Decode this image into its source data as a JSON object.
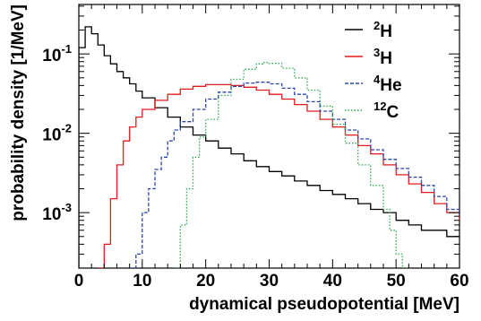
{
  "chart_data": {
    "type": "line",
    "title": "",
    "xlabel": "dynamical pseudopotential [MeV]",
    "ylabel": "probability density [1/MeV]",
    "xlim": [
      0,
      60
    ],
    "ylim": [
      0.0002,
      0.42
    ],
    "y_scale": "log",
    "grid": false,
    "legend_position": "top-right",
    "x_ticks": [
      "0",
      "10",
      "20",
      "30",
      "40",
      "50",
      "60"
    ],
    "y_ticks": [
      {
        "base": "10",
        "exp": "-1"
      },
      {
        "base": "10",
        "exp": "-2"
      },
      {
        "base": "10",
        "exp": "-3"
      }
    ],
    "series": [
      {
        "name_mass": "2",
        "name_elem": "H",
        "color": "#000000",
        "dash": "solid",
        "points": [
          [
            0,
            0.12
          ],
          [
            1,
            0.22
          ],
          [
            2,
            0.18
          ],
          [
            3,
            0.13
          ],
          [
            4,
            0.095
          ],
          [
            5,
            0.075
          ],
          [
            6,
            0.06
          ],
          [
            7,
            0.05
          ],
          [
            8,
            0.042
          ],
          [
            9,
            0.034
          ],
          [
            10,
            0.028
          ],
          [
            12,
            0.021
          ],
          [
            14,
            0.016
          ],
          [
            16,
            0.012
          ],
          [
            18,
            0.0095
          ],
          [
            20,
            0.008
          ],
          [
            22,
            0.0065
          ],
          [
            24,
            0.0055
          ],
          [
            26,
            0.0045
          ],
          [
            28,
            0.0038
          ],
          [
            30,
            0.0033
          ],
          [
            32,
            0.0029
          ],
          [
            34,
            0.0025
          ],
          [
            36,
            0.0022
          ],
          [
            38,
            0.0019
          ],
          [
            40,
            0.0017
          ],
          [
            42,
            0.0015
          ],
          [
            44,
            0.0013
          ],
          [
            46,
            0.0011
          ],
          [
            48,
            0.001
          ],
          [
            50,
            0.0008
          ],
          [
            52,
            0.0007
          ],
          [
            54,
            0.0006
          ],
          [
            56,
            0.0006
          ],
          [
            58,
            0.0005
          ],
          [
            60,
            0.0005
          ]
        ]
      },
      {
        "name_mass": "3",
        "name_elem": "H",
        "color": "#e31b1b",
        "dash": "solid",
        "points": [
          [
            3,
            0.0002
          ],
          [
            4,
            0.0004
          ],
          [
            5,
            0.0015
          ],
          [
            6,
            0.004
          ],
          [
            7,
            0.008
          ],
          [
            8,
            0.012
          ],
          [
            9,
            0.016
          ],
          [
            10,
            0.02
          ],
          [
            12,
            0.026
          ],
          [
            14,
            0.031
          ],
          [
            16,
            0.036
          ],
          [
            18,
            0.039
          ],
          [
            20,
            0.041
          ],
          [
            22,
            0.041
          ],
          [
            24,
            0.04
          ],
          [
            26,
            0.038
          ],
          [
            28,
            0.035
          ],
          [
            30,
            0.031
          ],
          [
            32,
            0.027
          ],
          [
            34,
            0.023
          ],
          [
            36,
            0.019
          ],
          [
            38,
            0.015
          ],
          [
            40,
            0.012
          ],
          [
            42,
            0.0095
          ],
          [
            44,
            0.007
          ],
          [
            46,
            0.0055
          ],
          [
            48,
            0.004
          ],
          [
            50,
            0.003
          ],
          [
            52,
            0.0023
          ],
          [
            54,
            0.0018
          ],
          [
            56,
            0.0013
          ],
          [
            58,
            0.001
          ],
          [
            60,
            0.0008
          ]
        ]
      },
      {
        "name_mass": "4",
        "name_elem": "He",
        "color": "#2a46a8",
        "dash": "dashed",
        "points": [
          [
            8,
            0.0002
          ],
          [
            9,
            0.0003
          ],
          [
            10,
            0.001
          ],
          [
            11,
            0.002
          ],
          [
            12,
            0.0035
          ],
          [
            13,
            0.005
          ],
          [
            14,
            0.008
          ],
          [
            15,
            0.011
          ],
          [
            16,
            0.014
          ],
          [
            18,
            0.02
          ],
          [
            20,
            0.027
          ],
          [
            22,
            0.033
          ],
          [
            24,
            0.039
          ],
          [
            26,
            0.043
          ],
          [
            28,
            0.044
          ],
          [
            30,
            0.042
          ],
          [
            32,
            0.037
          ],
          [
            34,
            0.031
          ],
          [
            36,
            0.025
          ],
          [
            38,
            0.019
          ],
          [
            40,
            0.015
          ],
          [
            42,
            0.011
          ],
          [
            44,
            0.0085
          ],
          [
            46,
            0.0062
          ],
          [
            48,
            0.0047
          ],
          [
            50,
            0.0036
          ],
          [
            52,
            0.0028
          ],
          [
            54,
            0.0022
          ],
          [
            56,
            0.0016
          ],
          [
            58,
            0.0011
          ],
          [
            60,
            0.0009
          ]
        ]
      },
      {
        "name_mass": "12",
        "name_elem": "C",
        "color": "#2fa84f",
        "dash": "dotted",
        "points": [
          [
            15,
            0.0002
          ],
          [
            16,
            0.0007
          ],
          [
            17,
            0.002
          ],
          [
            18,
            0.005
          ],
          [
            19,
            0.009
          ],
          [
            20,
            0.015
          ],
          [
            22,
            0.03
          ],
          [
            24,
            0.048
          ],
          [
            26,
            0.064
          ],
          [
            28,
            0.075
          ],
          [
            29,
            0.078
          ],
          [
            30,
            0.076
          ],
          [
            32,
            0.066
          ],
          [
            34,
            0.05
          ],
          [
            36,
            0.035
          ],
          [
            38,
            0.022
          ],
          [
            40,
            0.013
          ],
          [
            42,
            0.0075
          ],
          [
            44,
            0.004
          ],
          [
            46,
            0.0022
          ],
          [
            48,
            0.0011
          ],
          [
            49,
            0.0006
          ],
          [
            50,
            0.0003
          ],
          [
            51,
            0.0002
          ]
        ]
      }
    ]
  }
}
